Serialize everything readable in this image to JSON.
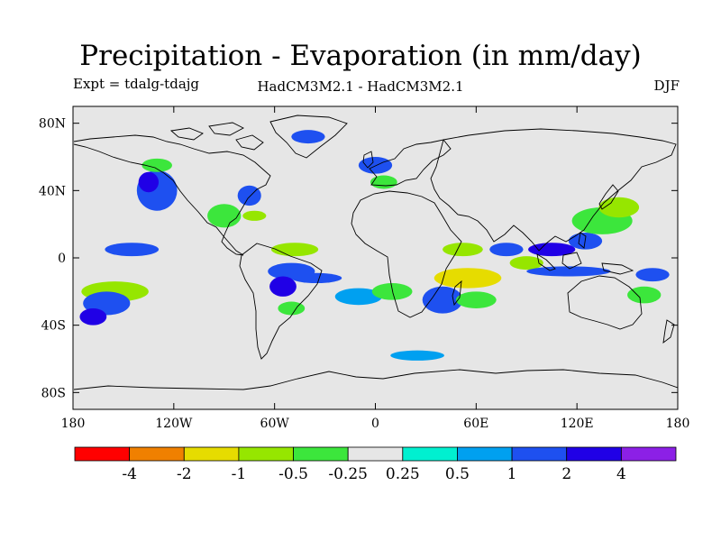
{
  "title": "Precipitation - Evaporation (in mm/day)",
  "experiment": "Expt = tdalg-tdajg",
  "model": "HadCM3M2.1 - HadCM3M2.1",
  "season": "DJF",
  "map": {
    "projection": "equirectangular",
    "lon_range": [
      -180,
      180
    ],
    "lat_range": [
      -90,
      90
    ],
    "lat_ticks": [
      {
        "value": 80,
        "label": "80N"
      },
      {
        "value": 40,
        "label": "40N"
      },
      {
        "value": 0,
        "label": "0"
      },
      {
        "value": -40,
        "label": "40S"
      },
      {
        "value": -80,
        "label": "80S"
      }
    ],
    "lon_ticks": [
      {
        "value": -180,
        "label": "180"
      },
      {
        "value": -120,
        "label": "120W"
      },
      {
        "value": -60,
        "label": "60W"
      },
      {
        "value": 0,
        "label": "0"
      },
      {
        "value": 60,
        "label": "60E"
      },
      {
        "value": 120,
        "label": "120E"
      },
      {
        "value": 180,
        "label": "180"
      }
    ],
    "background_color": "#e6e6e6",
    "coastline_color": "#000000"
  },
  "colorbar": {
    "colors": [
      "#ff0000",
      "#f08000",
      "#e6dc00",
      "#96e600",
      "#3ce63c",
      "#e6e6e6",
      "#00f0d0",
      "#00a0f0",
      "#1e50f0",
      "#2000e6",
      "#8c20e6"
    ],
    "labels": [
      "-4",
      "-2",
      "-1",
      "-0.5",
      "-0.25",
      "0.25",
      "0.5",
      "1",
      "2",
      "4"
    ]
  },
  "chart_data": {
    "type": "heatmap",
    "title": "Precipitation - Evaporation (in mm/day)",
    "units": "mm/day",
    "levels": [
      -4,
      -2,
      -1,
      -0.5,
      -0.25,
      0.25,
      0.5,
      1,
      2,
      4
    ],
    "regions": [
      {
        "lon": -155,
        "lat": -20,
        "rx": 20,
        "ry": 6,
        "value": -1
      },
      {
        "lon": -160,
        "lat": -27,
        "rx": 14,
        "ry": 7,
        "value": 1.5
      },
      {
        "lon": -168,
        "lat": -35,
        "rx": 8,
        "ry": 5,
        "value": 2
      },
      {
        "lon": -145,
        "lat": 5,
        "rx": 16,
        "ry": 4,
        "value": 1.5
      },
      {
        "lon": -130,
        "lat": 40,
        "rx": 12,
        "ry": 12,
        "value": 1
      },
      {
        "lon": -135,
        "lat": 45,
        "rx": 6,
        "ry": 6,
        "value": 2
      },
      {
        "lon": -130,
        "lat": 55,
        "rx": 9,
        "ry": 4,
        "value": -0.5
      },
      {
        "lon": -90,
        "lat": 25,
        "rx": 10,
        "ry": 7,
        "value": -0.5
      },
      {
        "lon": -72,
        "lat": 25,
        "rx": 7,
        "ry": 3,
        "value": -1
      },
      {
        "lon": -75,
        "lat": 37,
        "rx": 7,
        "ry": 6,
        "value": 1
      },
      {
        "lon": -48,
        "lat": 5,
        "rx": 14,
        "ry": 4,
        "value": -1
      },
      {
        "lon": -50,
        "lat": -8,
        "rx": 14,
        "ry": 5,
        "value": 1
      },
      {
        "lon": -55,
        "lat": -17,
        "rx": 8,
        "ry": 6,
        "value": 2
      },
      {
        "lon": -35,
        "lat": -12,
        "rx": 15,
        "ry": 3,
        "value": 1
      },
      {
        "lon": -50,
        "lat": -30,
        "rx": 8,
        "ry": 4,
        "value": -0.5
      },
      {
        "lon": -10,
        "lat": -23,
        "rx": 14,
        "ry": 5,
        "value": 0.5
      },
      {
        "lon": 10,
        "lat": -20,
        "rx": 12,
        "ry": 5,
        "value": -0.5
      },
      {
        "lon": 55,
        "lat": -12,
        "rx": 20,
        "ry": 6,
        "value": -1.5
      },
      {
        "lon": 40,
        "lat": -25,
        "rx": 12,
        "ry": 8,
        "value": 1.5
      },
      {
        "lon": 60,
        "lat": -25,
        "rx": 12,
        "ry": 5,
        "value": -0.5
      },
      {
        "lon": 52,
        "lat": 5,
        "rx": 12,
        "ry": 4,
        "value": -1
      },
      {
        "lon": 78,
        "lat": 5,
        "rx": 10,
        "ry": 4,
        "value": 1.5
      },
      {
        "lon": 90,
        "lat": -3,
        "rx": 10,
        "ry": 4,
        "value": -1
      },
      {
        "lon": 105,
        "lat": 5,
        "rx": 14,
        "ry": 4,
        "value": 2
      },
      {
        "lon": 115,
        "lat": -8,
        "rx": 25,
        "ry": 3,
        "value": 1
      },
      {
        "lon": 125,
        "lat": 10,
        "rx": 10,
        "ry": 5,
        "value": 1
      },
      {
        "lon": 135,
        "lat": 22,
        "rx": 18,
        "ry": 8,
        "value": -0.5
      },
      {
        "lon": 145,
        "lat": 30,
        "rx": 12,
        "ry": 6,
        "value": -1
      },
      {
        "lon": 165,
        "lat": -10,
        "rx": 10,
        "ry": 4,
        "value": 1.5
      },
      {
        "lon": 160,
        "lat": -22,
        "rx": 10,
        "ry": 5,
        "value": -0.5
      },
      {
        "lon": -40,
        "lat": 72,
        "rx": 10,
        "ry": 4,
        "value": 1
      },
      {
        "lon": 0,
        "lat": 55,
        "rx": 10,
        "ry": 5,
        "value": 1
      },
      {
        "lon": 5,
        "lat": 45,
        "rx": 8,
        "ry": 4,
        "value": -0.5
      },
      {
        "lon": 25,
        "lat": -58,
        "rx": 16,
        "ry": 3,
        "value": 0.5
      }
    ]
  }
}
